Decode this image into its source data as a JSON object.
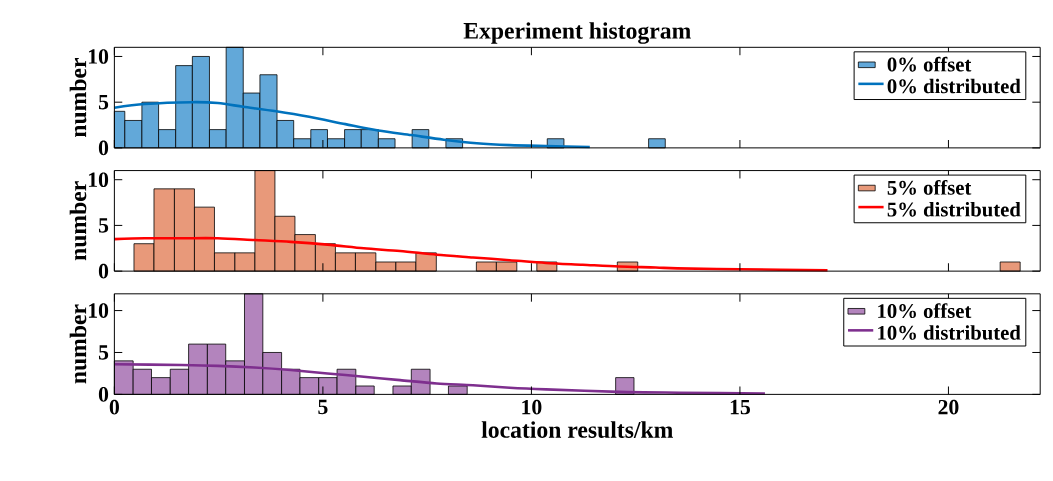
{
  "chart_data": [
    {
      "type": "histogram",
      "title": "Experiment histogram",
      "ylabel": "number",
      "xlim": [
        0,
        22.2
      ],
      "ylim": [
        0,
        11
      ],
      "xticks": [
        0,
        5,
        10,
        15,
        20
      ],
      "yticks": [
        0,
        5,
        10
      ],
      "legend": "top right",
      "tick_labels": "y",
      "series": [
        {
          "name": "0% offset",
          "type": "histogram",
          "color": "#62a8d9",
          "bins": [
            0,
            0.25,
            0.66,
            1.06,
            1.47,
            1.87,
            2.28,
            2.68,
            3.09,
            3.49,
            3.9,
            4.3,
            4.71,
            5.11,
            5.52,
            5.92,
            6.33,
            6.73,
            7.14,
            7.54,
            7.95,
            8.35,
            10.38,
            10.78,
            12.81,
            13.21
          ],
          "values": [
            4,
            3,
            5,
            2,
            9,
            10,
            2,
            11,
            6,
            8,
            3,
            1,
            2,
            1,
            2,
            2,
            1,
            0,
            2,
            0,
            1,
            0,
            1,
            0,
            1
          ]
        },
        {
          "name": "0% distributed",
          "type": "line",
          "color": "#0072bd",
          "x": [
            0,
            0.73,
            1.87,
            2.48,
            3.09,
            3.88,
            4.67,
            5.54,
            6.33,
            7.12,
            7.9,
            8.69,
            9.48,
            10.35,
            11.4
          ],
          "values": [
            4.4,
            4.8,
            5.0,
            4.9,
            4.5,
            4.0,
            3.4,
            2.6,
            1.9,
            1.4,
            0.9,
            0.5,
            0.3,
            0.2,
            0.1
          ]
        }
      ]
    },
    {
      "type": "histogram",
      "ylabel": "number",
      "xlim": [
        0,
        22.2
      ],
      "ylim": [
        0,
        11
      ],
      "xticks": [
        0,
        5,
        10,
        15,
        20
      ],
      "yticks": [
        0,
        5,
        10
      ],
      "legend": "top right",
      "tick_labels": "y",
      "series": [
        {
          "name": "5% offset",
          "type": "histogram",
          "color": "#e8997a",
          "bins": [
            0.47,
            0.95,
            1.44,
            1.92,
            2.4,
            2.89,
            3.37,
            3.85,
            4.33,
            4.82,
            5.3,
            5.78,
            6.27,
            6.75,
            7.23,
            7.72,
            8.2,
            8.68,
            9.16,
            9.65,
            10.13,
            10.61,
            11.1,
            11.58,
            12.06,
            12.55,
            13.03,
            13.51,
            13.99,
            14.48,
            14.96,
            15.44,
            15.93,
            16.41,
            16.89,
            17.38,
            17.86,
            18.34,
            18.82,
            19.31,
            19.79,
            20.27,
            20.76,
            21.24,
            21.72
          ],
          "values": [
            3,
            9,
            9,
            7,
            2,
            2,
            11,
            6,
            4,
            3,
            2,
            2,
            1,
            1,
            2,
            0,
            0,
            1,
            1,
            0,
            1,
            0,
            0,
            0,
            1,
            0,
            0,
            0,
            0,
            0,
            0,
            0,
            0,
            0,
            0,
            0,
            0,
            0,
            0,
            0,
            0,
            0,
            0,
            1
          ]
        },
        {
          "name": "5% distributed",
          "type": "line",
          "color": "#ff0000",
          "x": [
            0,
            0.73,
            1.61,
            2.48,
            3.36,
            4.23,
            5.11,
            5.98,
            6.85,
            7.73,
            8.6,
            9.48,
            10.35,
            11.23,
            12.1,
            12.98,
            13.5,
            15.0,
            17.1
          ],
          "values": [
            3.5,
            3.6,
            3.6,
            3.6,
            3.4,
            3.2,
            2.9,
            2.5,
            2.2,
            1.8,
            1.5,
            1.2,
            0.9,
            0.7,
            0.5,
            0.4,
            0.3,
            0.2,
            0.1
          ]
        }
      ]
    },
    {
      "type": "histogram",
      "ylabel": "number",
      "xlabel": "location results/km",
      "xlim": [
        0,
        22.2
      ],
      "ylim": [
        0,
        12
      ],
      "xticks": [
        0,
        5,
        10,
        15,
        20
      ],
      "yticks": [
        0,
        5,
        10
      ],
      "legend": "top right",
      "series": [
        {
          "name": "10% offset",
          "type": "histogram",
          "color": "#b384bd",
          "bins": [
            0,
            0.45,
            0.89,
            1.34,
            1.78,
            2.23,
            2.67,
            3.12,
            3.56,
            4.01,
            4.45,
            4.9,
            5.34,
            5.79,
            6.23,
            6.68,
            7.12,
            7.57,
            8.01,
            8.46,
            8.9,
            9.35,
            9.79,
            10.24,
            10.68,
            11.13,
            11.57,
            12.02,
            12.46
          ],
          "values": [
            4,
            3,
            2,
            3,
            6,
            6,
            4,
            12,
            5,
            3,
            2,
            2,
            3,
            1,
            0,
            1,
            3,
            0,
            1,
            0,
            0,
            0,
            0,
            0,
            0,
            0,
            0,
            2
          ]
        },
        {
          "name": "10% distributed",
          "type": "line",
          "color": "#7e2f8e",
          "x": [
            0,
            1.61,
            2.48,
            3.36,
            4.23,
            5.11,
            5.98,
            6.85,
            7.73,
            8.6,
            9.48,
            10.35,
            12.1,
            13.57,
            15.6
          ],
          "values": [
            3.6,
            3.5,
            3.4,
            3.2,
            2.9,
            2.5,
            2.1,
            1.7,
            1.3,
            1.1,
            0.8,
            0.6,
            0.3,
            0.2,
            0.1
          ]
        }
      ]
    }
  ]
}
